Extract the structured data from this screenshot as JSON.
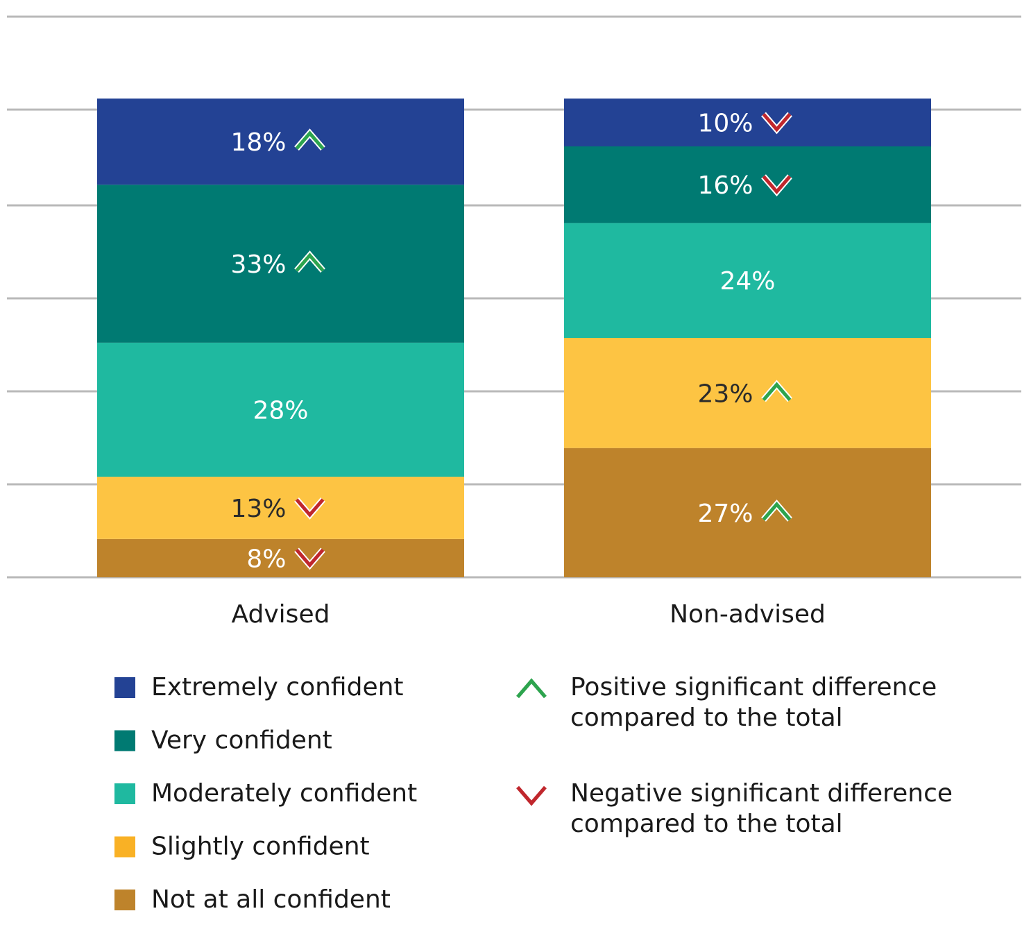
{
  "chart_data": {
    "type": "bar",
    "stacked": true,
    "normalized": true,
    "categories": [
      "Advised",
      "Non-advised"
    ],
    "series": [
      {
        "name": "Not at all confident",
        "values": [
          8,
          27
        ],
        "color": "#BE832B",
        "label_color": "#ffffff",
        "labels": [
          "8%",
          "27%"
        ],
        "significance": [
          "negative",
          "positive"
        ]
      },
      {
        "name": "Slightly confident",
        "values": [
          13,
          23
        ],
        "color": "#FDC443",
        "label_color": "#2b2b2b",
        "labels": [
          "13%",
          "23%"
        ],
        "significance": [
          "negative",
          "positive"
        ]
      },
      {
        "name": "Moderately confident",
        "values": [
          28,
          24
        ],
        "color": "#1FB9A0",
        "label_color": "#ffffff",
        "labels": [
          "28%",
          "24%"
        ],
        "significance": [
          "none",
          "none"
        ]
      },
      {
        "name": "Very confident",
        "values": [
          33,
          16
        ],
        "color": "#007A72",
        "label_color": "#ffffff",
        "labels": [
          "33%",
          "16%"
        ],
        "significance": [
          "positive",
          "negative"
        ]
      },
      {
        "name": "Extremely confident",
        "values": [
          18,
          10
        ],
        "color": "#234294",
        "label_color": "#ffffff",
        "labels": [
          "18%",
          "10%"
        ],
        "significance": [
          "positive",
          "negative"
        ]
      }
    ],
    "legend": [
      {
        "name": "Extremely confident",
        "color": "#234294"
      },
      {
        "name": "Very confident",
        "color": "#007A72"
      },
      {
        "name": "Moderately confident",
        "color": "#1FB9A0"
      },
      {
        "name": "Slightly confident",
        "color": "#F9B125"
      },
      {
        "name": "Not at all confident",
        "color": "#BE832B"
      }
    ],
    "markers": [
      {
        "type": "positive",
        "color": "#2DA44E",
        "lines": [
          "Positive significant difference",
          "compared to the total"
        ]
      },
      {
        "type": "negative",
        "color": "#C0272D",
        "lines": [
          "Negative significant difference",
          "compared to the total"
        ]
      }
    ],
    "grid": true,
    "legend_position": "bottom",
    "grid_color": "#b9b9b9"
  }
}
